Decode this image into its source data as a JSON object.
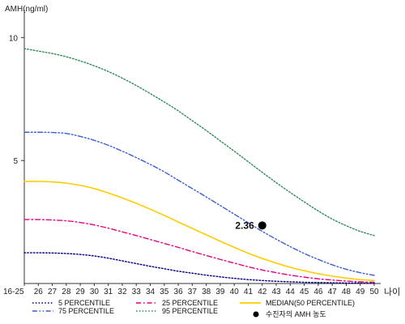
{
  "chart_data": {
    "type": "line",
    "ylabel": "AMH(ng/ml)",
    "xlabel": "나이",
    "ylim": [
      0,
      11
    ],
    "y_ticks": [
      5,
      10
    ],
    "categories": [
      "16-25",
      "26",
      "27",
      "28",
      "29",
      "30",
      "31",
      "32",
      "33",
      "34",
      "35",
      "36",
      "37",
      "38",
      "39",
      "40",
      "41",
      "42",
      "43",
      "44",
      "45",
      "46",
      "47",
      "48",
      "49",
      "50"
    ],
    "series": [
      {
        "name": "5 PERCENTILE",
        "color": "#000080",
        "dash": "dot",
        "values": [
          1.25,
          1.25,
          1.24,
          1.22,
          1.18,
          1.12,
          1.03,
          0.92,
          0.81,
          0.7,
          0.6,
          0.5,
          0.42,
          0.34,
          0.27,
          0.21,
          0.16,
          0.12,
          0.09,
          0.07,
          0.05,
          0.04,
          0.03,
          0.02,
          0.02,
          0.01
        ]
      },
      {
        "name": "25 PERCENTILE",
        "color": "#e6007e",
        "dash": "dashdot",
        "values": [
          2.6,
          2.6,
          2.58,
          2.55,
          2.48,
          2.38,
          2.25,
          2.1,
          1.95,
          1.79,
          1.63,
          1.47,
          1.3,
          1.14,
          0.98,
          0.83,
          0.68,
          0.55,
          0.44,
          0.34,
          0.26,
          0.19,
          0.14,
          0.1,
          0.07,
          0.05
        ]
      },
      {
        "name": "MEDIAN(50 PERCENTILE)",
        "color": "#ffcc00",
        "dash": "solid",
        "values": [
          4.15,
          4.15,
          4.13,
          4.08,
          3.99,
          3.86,
          3.68,
          3.48,
          3.26,
          3.02,
          2.77,
          2.5,
          2.24,
          1.98,
          1.72,
          1.47,
          1.23,
          1.02,
          0.83,
          0.66,
          0.52,
          0.4,
          0.3,
          0.22,
          0.16,
          0.12
        ]
      },
      {
        "name": "75 PERCENTILE",
        "color": "#3a5fcd",
        "dash": "dashdotdot",
        "values": [
          6.15,
          6.15,
          6.14,
          6.1,
          5.98,
          5.82,
          5.62,
          5.38,
          5.12,
          4.84,
          4.54,
          4.2,
          3.86,
          3.52,
          3.17,
          2.82,
          2.47,
          2.12,
          1.8,
          1.5,
          1.22,
          0.98,
          0.76,
          0.58,
          0.44,
          0.33
        ]
      },
      {
        "name": "95 PERCENTILE",
        "color": "#2e8b57",
        "dash": "dot",
        "values": [
          9.55,
          9.45,
          9.35,
          9.22,
          9.05,
          8.85,
          8.62,
          8.35,
          8.05,
          7.72,
          7.38,
          7.02,
          6.62,
          6.22,
          5.8,
          5.38,
          4.95,
          4.52,
          4.1,
          3.7,
          3.32,
          2.95,
          2.62,
          2.35,
          2.12,
          1.95
        ]
      }
    ],
    "patient": {
      "name": "수진자의 AMH 농도",
      "x": "42",
      "y": 2.36,
      "label": "2.36",
      "color": "#000000"
    },
    "legend_position": "bottom"
  }
}
